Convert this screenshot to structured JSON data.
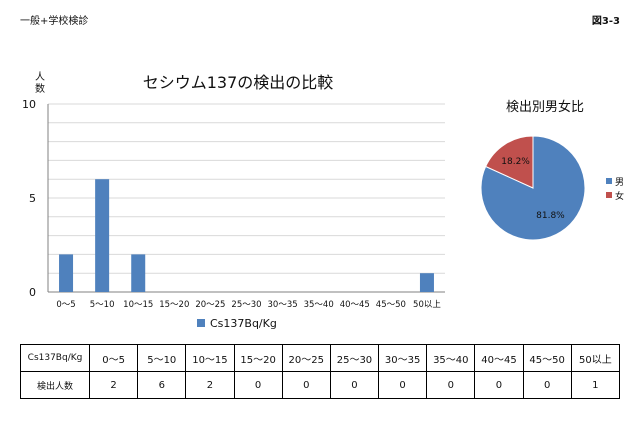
{
  "header": {
    "left": "一般+学校検診",
    "right": "図3-3"
  },
  "chart_data": [
    {
      "type": "bar",
      "title": "セシウム137の検出の比較",
      "ylabel": "人数",
      "xlabel": "",
      "ylim": [
        0,
        10
      ],
      "yticks": [
        "0",
        "5",
        "10"
      ],
      "grid": true,
      "legend_position": "bottom",
      "categories": [
        "0～5",
        "5～10",
        "10～15",
        "15～20",
        "20～25",
        "25～30",
        "30～35",
        "35～40",
        "40～45",
        "45～50",
        "50以上"
      ],
      "series": [
        {
          "name": "Cs137Bq/Kg",
          "values": [
            2,
            6,
            2,
            0,
            0,
            0,
            0,
            0,
            0,
            0,
            1
          ],
          "color": "#4f81bd"
        }
      ]
    },
    {
      "type": "pie",
      "title": "検出別男女比",
      "legend_position": "right",
      "slices": [
        {
          "label": "男",
          "value": 81.8,
          "display": "81.8%",
          "color": "#4f81bd"
        },
        {
          "label": "女",
          "value": 18.2,
          "display": "18.2%",
          "color": "#c0504d"
        }
      ]
    }
  ],
  "table": {
    "row_headers": [
      "Cs137Bq/Kg",
      "検出人数"
    ],
    "columns": [
      "0～5",
      "5～10",
      "10～15",
      "15～20",
      "20～25",
      "25～30",
      "30～35",
      "35～40",
      "40～45",
      "45～50",
      "50以上"
    ],
    "values": [
      "2",
      "6",
      "2",
      "0",
      "0",
      "0",
      "0",
      "0",
      "0",
      "0",
      "1"
    ]
  }
}
